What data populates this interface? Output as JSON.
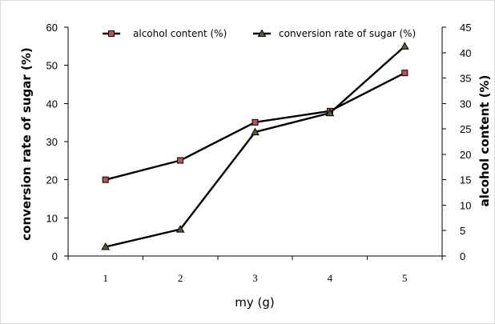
{
  "chart_data": {
    "type": "line",
    "categories": [
      "1",
      "2",
      "3",
      "4",
      "5"
    ],
    "xlabel": "my (g)",
    "ylabel_left": "conversion rate of sugar (%)",
    "ylabel_right": "alcohol content (%)",
    "ylim_left": [
      0,
      60
    ],
    "yticks_left": [
      "0",
      "10",
      "20",
      "30",
      "40",
      "50",
      "60"
    ],
    "ylim_right": [
      0,
      45
    ],
    "yticks_right": [
      "0",
      "5",
      "10",
      "15",
      "20",
      "25",
      "30",
      "35",
      "40",
      "45"
    ],
    "grid": false,
    "legend_position": "top",
    "series": [
      {
        "name": "alcohol content (%)",
        "axis": "right",
        "marker": "square",
        "marker_color": "#c0504d",
        "line_color": "#000000",
        "values": [
          15,
          18.8,
          26.3,
          28.5,
          36
        ]
      },
      {
        "name": "conversion rate of sugar (%)",
        "axis": "left",
        "marker": "triangle",
        "marker_color": "#4f6228",
        "line_color": "#000000",
        "values": [
          2.4,
          7,
          32.5,
          37.5,
          55
        ]
      }
    ]
  }
}
